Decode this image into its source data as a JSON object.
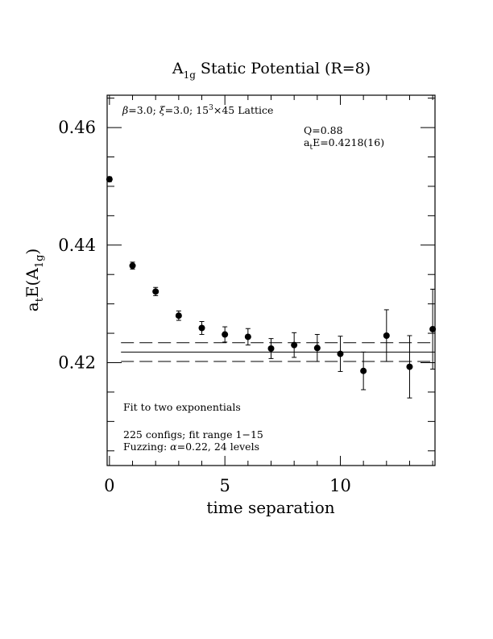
{
  "chart_data": {
    "type": "scatter",
    "title": "A1g Static Potential (R=8)",
    "title_parts": {
      "base": "A",
      "sub": "1g",
      "rest": " Static Potential (R=8)"
    },
    "xlabel": "time separation",
    "ylabel": "a_tE(A_1g)",
    "ylabel_parts": {
      "a": "a",
      "a_sub": "t",
      "mid": "E(A",
      "a1_sub": "1g",
      "end": ")"
    },
    "xlim": [
      -0.1,
      14.1
    ],
    "ylim": [
      0.4025,
      0.4655
    ],
    "x_ticks": [
      0,
      5,
      10
    ],
    "x_tick_labels": [
      "0",
      "5",
      "10"
    ],
    "y_ticks": [
      0.42,
      0.44,
      0.46
    ],
    "y_tick_labels": [
      "0.42",
      "0.44",
      "0.46"
    ],
    "grid": false,
    "series": [
      {
        "points": [
          {
            "x": 0,
            "y": 0.4512,
            "err": 0.0004
          },
          {
            "x": 1,
            "y": 0.4365,
            "err": 0.0006
          },
          {
            "x": 2,
            "y": 0.4321,
            "err": 0.0007
          },
          {
            "x": 3,
            "y": 0.428,
            "err": 0.0008
          },
          {
            "x": 4,
            "y": 0.4259,
            "err": 0.0011
          },
          {
            "x": 5,
            "y": 0.4248,
            "err": 0.0013
          },
          {
            "x": 6,
            "y": 0.4244,
            "err": 0.0014
          },
          {
            "x": 7,
            "y": 0.4224,
            "err": 0.0017
          },
          {
            "x": 8,
            "y": 0.423,
            "err": 0.0021
          },
          {
            "x": 9,
            "y": 0.4225,
            "err": 0.0023
          },
          {
            "x": 10,
            "y": 0.4215,
            "err": 0.003
          },
          {
            "x": 11,
            "y": 0.4186,
            "err": 0.0032
          },
          {
            "x": 12,
            "y": 0.4246,
            "err": 0.0044
          },
          {
            "x": 13,
            "y": 0.4193,
            "err": 0.0053
          },
          {
            "x": 14,
            "y": 0.4257,
            "err": 0.0068
          }
        ]
      }
    ],
    "fit": {
      "value": 0.4218,
      "upper": 0.4234,
      "lower": 0.4202,
      "x_range": [
        0.5,
        14.1
      ]
    },
    "annotations": {
      "lattice_prefix_beta": "β",
      "lattice_mid": "=3.0; ",
      "lattice_xi": "ξ",
      "lattice_rest": "=3.0; 15",
      "lattice_sup": "3",
      "lattice_end": "×45 Lattice",
      "q": "Q=0.88",
      "energy_a": "a",
      "energy_sub": "t",
      "energy_rest": "E=0.4218(16)",
      "fit_desc": "Fit to two exponentials",
      "configs": "225 configs; fit range 1−15",
      "fuzzing_prefix": "Fuzzing: ",
      "fuzzing_alpha": "α",
      "fuzzing_rest": "=0.22, 24 levels"
    }
  }
}
